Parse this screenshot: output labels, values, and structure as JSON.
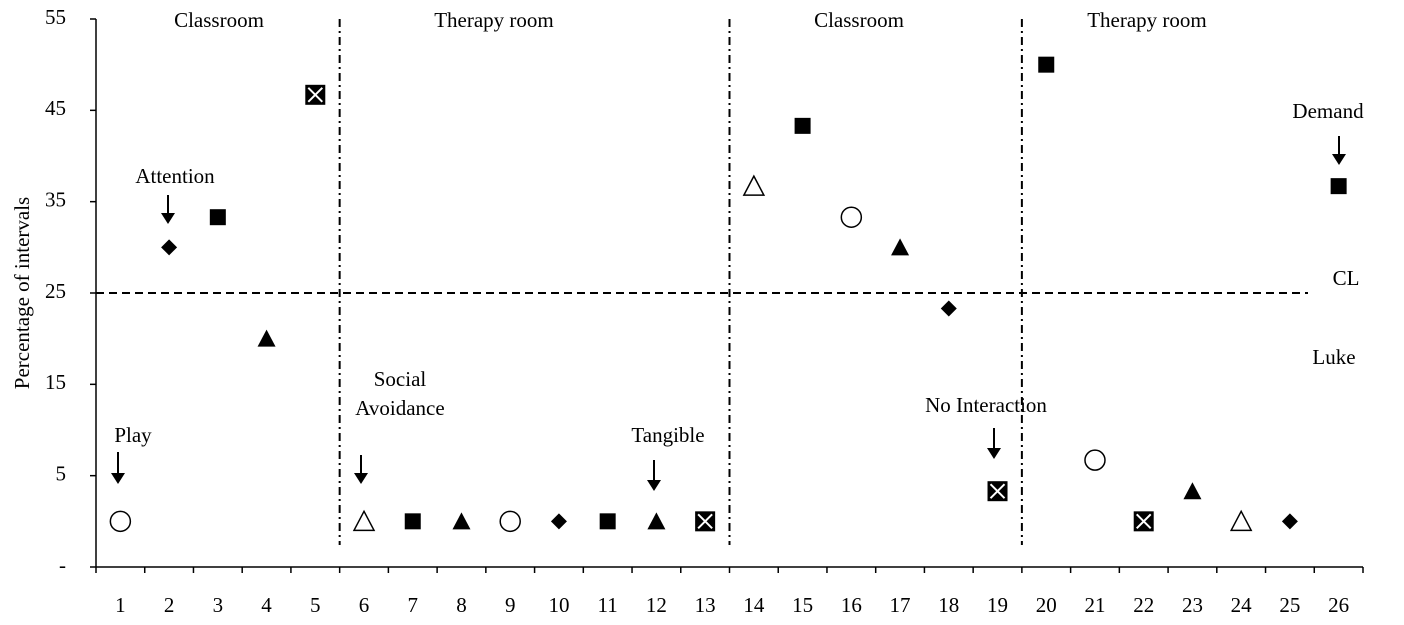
{
  "chart_data": {
    "type": "scatter",
    "y_label": "Percentage of intervals",
    "categories": [
      "1",
      "2",
      "3",
      "4",
      "5",
      "6",
      "7",
      "8",
      "9",
      "10",
      "11",
      "12",
      "13",
      "14",
      "15",
      "16",
      "17",
      "18",
      "19",
      "20",
      "21",
      "22",
      "23",
      "24",
      "25",
      "26"
    ],
    "ylim": [
      -5,
      55
    ],
    "yticks": [
      {
        "value": -5,
        "label": "-"
      },
      5,
      15,
      25,
      35,
      45,
      55
    ],
    "color": "#000000",
    "series": [
      {
        "marker": "circle",
        "values": [
          0,
          null,
          null,
          null,
          null,
          null,
          null,
          null,
          0,
          null,
          null,
          null,
          null,
          null,
          null,
          33.3,
          null,
          null,
          null,
          null,
          6.7,
          null,
          null,
          null,
          null,
          null
        ]
      },
      {
        "marker": "diamond",
        "values": [
          null,
          30,
          null,
          null,
          null,
          null,
          null,
          null,
          null,
          0,
          null,
          null,
          null,
          null,
          null,
          null,
          null,
          23.3,
          null,
          null,
          null,
          null,
          null,
          null,
          0,
          null
        ]
      },
      {
        "marker": "square",
        "values": [
          null,
          null,
          33.3,
          null,
          null,
          null,
          0,
          null,
          null,
          null,
          0,
          null,
          null,
          null,
          43.3,
          null,
          null,
          null,
          null,
          50,
          null,
          null,
          null,
          null,
          null,
          36.7
        ]
      },
      {
        "marker": "triangle",
        "values": [
          null,
          null,
          null,
          20,
          null,
          null,
          null,
          0,
          null,
          null,
          null,
          0,
          null,
          null,
          null,
          null,
          30,
          null,
          null,
          null,
          null,
          null,
          3.3,
          null,
          null,
          null
        ]
      },
      {
        "marker": "boxed-x",
        "values": [
          null,
          null,
          null,
          null,
          46.7,
          null,
          null,
          null,
          null,
          null,
          null,
          null,
          0,
          null,
          null,
          null,
          null,
          null,
          3.3,
          null,
          null,
          0,
          null,
          null,
          null,
          null
        ]
      },
      {
        "marker": "triangle-open",
        "values": [
          null,
          null,
          null,
          null,
          null,
          0,
          null,
          null,
          null,
          null,
          null,
          null,
          null,
          36.7,
          null,
          null,
          null,
          null,
          null,
          null,
          null,
          null,
          null,
          0,
          null,
          null
        ]
      }
    ],
    "phases": [
      "Classroom",
      "Therapy room",
      "Classroom",
      "Therapy room"
    ],
    "reference_line": {
      "label": "CL",
      "value": 25
    },
    "participant": "Luke",
    "annotations": [
      [
        "Play"
      ],
      [
        "Attention"
      ],
      [
        "Social",
        "Avoidance"
      ],
      [
        "Tangible"
      ],
      [
        "No Interaction"
      ],
      [
        "Demand"
      ]
    ]
  }
}
